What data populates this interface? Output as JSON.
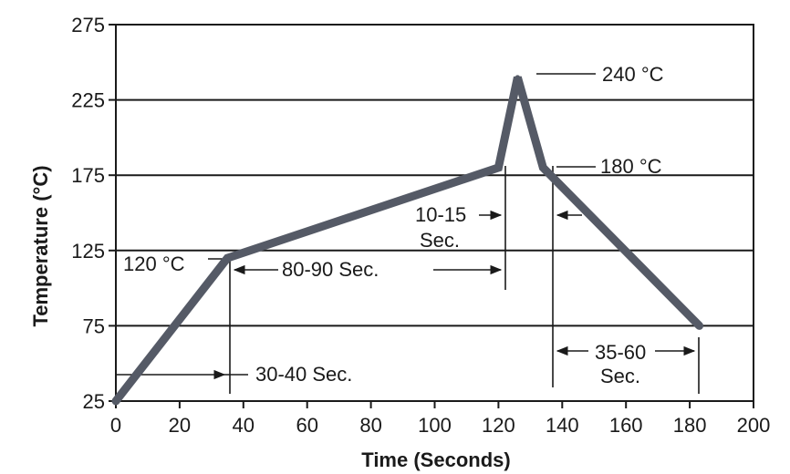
{
  "chart_data": {
    "type": "line",
    "title": "",
    "xlabel": "Time (Seconds)",
    "ylabel": "Temperature (°C)",
    "xlim": [
      0,
      200
    ],
    "ylim": [
      25,
      275
    ],
    "x_ticks": [
      0,
      20,
      40,
      60,
      80,
      100,
      120,
      140,
      160,
      180,
      200
    ],
    "y_ticks": [
      25,
      75,
      125,
      175,
      225,
      275
    ],
    "grid": "horizontal",
    "legend": "none",
    "line_color": "#555a66",
    "series": [
      {
        "x": [
          0,
          35,
          120,
          126,
          134,
          183
        ],
        "y": [
          25,
          120,
          180,
          240,
          180,
          75
        ]
      }
    ],
    "annotations": {
      "ramp": "30-40 Sec.",
      "soak_start": "120 °C",
      "soak": "80-90 Sec.",
      "peak": "240 °C",
      "reflow_exit": "180 °C",
      "reflow_line1": "10-15",
      "reflow_line2": "Sec.",
      "cool_line1": "35-60",
      "cool_line2": "Sec."
    }
  }
}
